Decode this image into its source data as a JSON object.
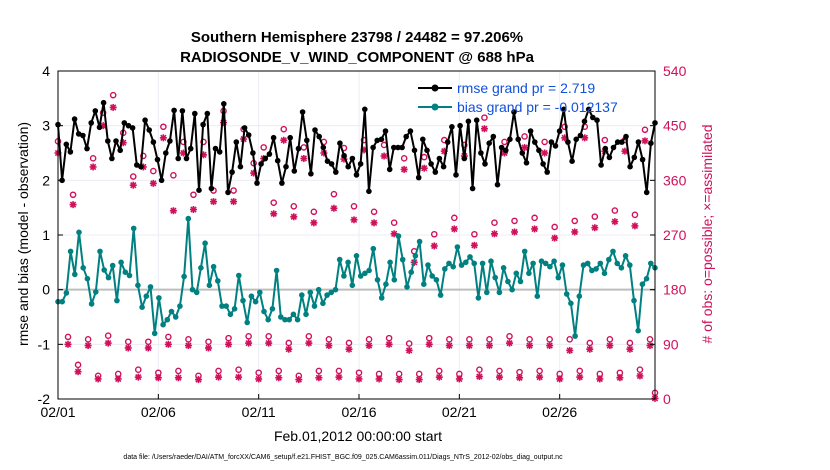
{
  "colors": {
    "rmse": "#000000",
    "bias": "#008080",
    "obs": "#d0105a",
    "zero": "#bdbdbd",
    "legend_text": "#1050e0",
    "grid": "#ececf4"
  },
  "chart_data": {
    "type": "line",
    "title_line1": "Southern Hemisphere 23798 / 24482 = 97.206%",
    "title_line2": "RADIOSONDE_V_WIND_COMPONENT @ 688 hPa",
    "ylabel": "rmse and bias (model - observation)",
    "ylabel_right": "# of obs: o=possible; ×=assimilated",
    "xlabel": "Feb.01,2012 00:00:00 start",
    "footnote": "data file: /Users/raeder/DAI/ATM_forcXX/CAM6_setup/f.e21.FHIST_BGC.f09_025.CAM6assim.011/Diags_NTrS_2012-02/obs_diag_output.nc",
    "xlim": [
      0,
      29.75
    ],
    "ylim": [
      -2,
      4
    ],
    "ylim_right": [
      0,
      540
    ],
    "yticks": [
      "-2",
      "-1",
      "0",
      "1",
      "2",
      "3",
      "4"
    ],
    "yticks_right": [
      "0",
      "90",
      "180",
      "270",
      "360",
      "450",
      "540"
    ],
    "xtick_labels": [
      "02/01",
      "02/06",
      "02/11",
      "02/16",
      "02/21",
      "02/26"
    ],
    "xtick_days": [
      0,
      5,
      10,
      15,
      20,
      25
    ],
    "legend": [
      "rmse grand pr = 2.719",
      "bias grand pr = -0.012137"
    ],
    "series": [
      {
        "name": "rmse",
        "values": [
          3.02,
          2.0,
          2.66,
          2.52,
          3.12,
          2.85,
          2.82,
          2.58,
          3.05,
          3.27,
          2.97,
          3.42,
          2.72,
          2.4,
          2.72,
          2.55,
          3.05,
          3.0,
          2.96,
          2.28,
          2.25,
          3.1,
          2.92,
          2.7,
          2.38,
          2.0,
          2.5,
          2.72,
          3.28,
          2.4,
          3.27,
          2.4,
          2.58,
          3.22,
          1.82,
          3.02,
          3.22,
          1.85,
          2.58,
          2.52,
          3.4,
          1.78,
          2.15,
          2.7,
          2.25,
          2.96,
          2.83,
          2.5,
          1.95,
          2.3,
          2.4,
          2.48,
          2.78,
          2.36,
          1.95,
          2.25,
          2.78,
          2.17,
          2.58,
          3.25,
          2.73,
          2.12,
          2.92,
          2.8,
          2.6,
          2.35,
          2.3,
          2.15,
          2.68,
          2.45,
          2.25,
          2.4,
          2.1,
          2.3,
          3.3,
          1.8,
          2.6,
          2.73,
          2.75,
          2.9,
          2.2,
          2.6,
          2.6,
          2.6,
          2.8,
          2.9,
          2.55,
          2.05,
          2.75,
          2.55,
          2.3,
          2.15,
          2.4,
          2.25,
          2.7,
          2.98,
          2.1,
          3.0,
          2.4,
          3.08,
          1.85,
          3.1,
          2.5,
          2.3,
          2.68,
          2.8,
          1.92,
          2.6,
          2.55,
          2.75,
          3.25,
          2.75,
          2.5,
          2.32,
          2.9,
          2.7,
          2.55,
          2.3,
          2.15,
          2.7,
          2.63,
          2.9,
          3.3,
          2.7,
          2.35,
          2.75,
          2.82,
          3.08,
          3.3,
          3.15,
          3.1,
          2.28,
          2.58,
          2.42,
          2.6,
          2.7,
          2.7,
          2.8,
          2.25,
          2.42,
          2.7,
          2.38,
          1.78,
          2.68,
          3.05
        ]
      },
      {
        "name": "bias",
        "values": [
          -0.22,
          -0.22,
          -0.06,
          0.7,
          0.28,
          1.05,
          0.4,
          0.2,
          -0.26,
          -0.04,
          0.7,
          0.36,
          0.22,
          0.44,
          -0.2,
          0.5,
          0.32,
          0.26,
          1.12,
          0.08,
          -0.32,
          -0.12,
          0.05,
          -0.8,
          -0.15,
          -0.64,
          -0.55,
          -0.4,
          -0.5,
          -0.3,
          0.24,
          1.3,
          0.0,
          -0.05,
          0.4,
          0.85,
          0.08,
          0.42,
          0.16,
          -0.3,
          -0.3,
          -0.45,
          -0.35,
          0.26,
          -0.2,
          -0.6,
          -0.12,
          -0.22,
          -0.05,
          -0.4,
          -0.55,
          -0.35,
          0.35,
          -0.5,
          -0.55,
          -0.55,
          -0.45,
          -0.55,
          -0.1,
          -0.45,
          -0.05,
          -0.3,
          0.0,
          -0.25,
          -0.1,
          -0.05,
          0.0,
          0.55,
          0.25,
          0.5,
          0.08,
          0.62,
          0.25,
          0.3,
          0.35,
          0.75,
          0.18,
          -0.15,
          0.1,
          0.5,
          0.18,
          0.98,
          0.55,
          0.05,
          0.32,
          0.62,
          0.88,
          0.1,
          0.45,
          0.25,
          0.18,
          -0.1,
          0.38,
          0.48,
          0.42,
          0.78,
          0.45,
          0.5,
          0.6,
          0.48,
          -0.15,
          0.48,
          -0.05,
          0.52,
          0.22,
          -0.05,
          0.4,
          0.15,
          0.0,
          0.3,
          0.15,
          0.7,
          0.3,
          0.48,
          -0.12,
          0.52,
          0.48,
          0.42,
          0.52,
          0.22,
          0.45,
          -0.08,
          -0.25,
          -0.85,
          -0.12,
          0.45,
          0.48,
          0.35,
          0.38,
          0.48,
          0.3,
          0.55,
          0.7,
          0.48,
          0.4,
          0.62,
          0.45,
          -0.2,
          -0.75,
          0.1,
          0.2,
          0.48,
          0.4
        ]
      }
    ],
    "obs_possible": [
      {
        "day": 0.0,
        "v": 416
      },
      {
        "day": 0.5,
        "v": 94
      },
      {
        "day": 0.75,
        "v": 328
      },
      {
        "day": 1.0,
        "v": 48
      },
      {
        "day": 1.5,
        "v": 90
      },
      {
        "day": 1.75,
        "v": 388
      },
      {
        "day": 2.0,
        "v": 30
      },
      {
        "day": 2.25,
        "v": 463
      },
      {
        "day": 2.5,
        "v": 96
      },
      {
        "day": 2.75,
        "v": 492
      },
      {
        "day": 3.0,
        "v": 33
      },
      {
        "day": 3.25,
        "v": 430
      },
      {
        "day": 3.5,
        "v": 86
      },
      {
        "day": 3.75,
        "v": 358
      },
      {
        "day": 4.0,
        "v": 40
      },
      {
        "day": 4.25,
        "v": 392
      },
      {
        "day": 4.5,
        "v": 86
      },
      {
        "day": 4.75,
        "v": 367
      },
      {
        "day": 5.0,
        "v": 35
      },
      {
        "day": 5.25,
        "v": 440
      },
      {
        "day": 5.5,
        "v": 94
      },
      {
        "day": 5.75,
        "v": 360
      },
      {
        "day": 6.0,
        "v": 38
      },
      {
        "day": 6.25,
        "v": 415
      },
      {
        "day": 6.5,
        "v": 90
      },
      {
        "day": 6.75,
        "v": 328
      },
      {
        "day": 7.0,
        "v": 30
      },
      {
        "day": 7.25,
        "v": 415
      },
      {
        "day": 7.5,
        "v": 86
      },
      {
        "day": 7.75,
        "v": 335
      },
      {
        "day": 8.0,
        "v": 38
      },
      {
        "day": 8.25,
        "v": 466
      },
      {
        "day": 8.5,
        "v": 92
      },
      {
        "day": 8.75,
        "v": 335
      },
      {
        "day": 9.0,
        "v": 40
      },
      {
        "day": 9.25,
        "v": 436
      },
      {
        "day": 9.5,
        "v": 95
      },
      {
        "day": 9.75,
        "v": 380
      },
      {
        "day": 10.0,
        "v": 35
      },
      {
        "day": 10.25,
        "v": 406
      },
      {
        "day": 10.5,
        "v": 95
      },
      {
        "day": 10.75,
        "v": 315
      },
      {
        "day": 11.0,
        "v": 38
      },
      {
        "day": 11.25,
        "v": 436
      },
      {
        "day": 11.5,
        "v": 84
      },
      {
        "day": 11.75,
        "v": 309
      },
      {
        "day": 12.0,
        "v": 30
      },
      {
        "day": 12.25,
        "v": 406
      },
      {
        "day": 12.5,
        "v": 95
      },
      {
        "day": 12.75,
        "v": 300
      },
      {
        "day": 13.0,
        "v": 38
      },
      {
        "day": 13.25,
        "v": 415
      },
      {
        "day": 13.5,
        "v": 90
      },
      {
        "day": 13.75,
        "v": 329
      },
      {
        "day": 14.0,
        "v": 38
      },
      {
        "day": 14.25,
        "v": 405
      },
      {
        "day": 14.5,
        "v": 84
      },
      {
        "day": 14.75,
        "v": 309
      },
      {
        "day": 15.0,
        "v": 35
      },
      {
        "day": 15.25,
        "v": 418
      },
      {
        "day": 15.5,
        "v": 90
      },
      {
        "day": 15.75,
        "v": 300
      },
      {
        "day": 16.0,
        "v": 33
      },
      {
        "day": 16.25,
        "v": 410
      },
      {
        "day": 16.5,
        "v": 92
      },
      {
        "day": 16.75,
        "v": 282
      },
      {
        "day": 17.0,
        "v": 33
      },
      {
        "day": 17.25,
        "v": 388
      },
      {
        "day": 17.5,
        "v": 83
      },
      {
        "day": 17.75,
        "v": 235
      },
      {
        "day": 18.0,
        "v": 33
      },
      {
        "day": 18.25,
        "v": 390
      },
      {
        "day": 18.5,
        "v": 92
      },
      {
        "day": 18.75,
        "v": 263
      },
      {
        "day": 19.0,
        "v": 38
      },
      {
        "day": 19.25,
        "v": 418
      },
      {
        "day": 19.5,
        "v": 90
      },
      {
        "day": 19.75,
        "v": 290
      },
      {
        "day": 20.0,
        "v": 33
      },
      {
        "day": 20.25,
        "v": 410
      },
      {
        "day": 20.5,
        "v": 90
      },
      {
        "day": 20.75,
        "v": 263
      },
      {
        "day": 21.0,
        "v": 40
      },
      {
        "day": 21.25,
        "v": 455
      },
      {
        "day": 21.5,
        "v": 90
      },
      {
        "day": 21.75,
        "v": 282
      },
      {
        "day": 22.0,
        "v": 38
      },
      {
        "day": 22.25,
        "v": 415
      },
      {
        "day": 22.5,
        "v": 95
      },
      {
        "day": 22.75,
        "v": 285
      },
      {
        "day": 23.0,
        "v": 36
      },
      {
        "day": 23.25,
        "v": 424
      },
      {
        "day": 23.5,
        "v": 90
      },
      {
        "day": 23.75,
        "v": 290
      },
      {
        "day": 24.0,
        "v": 38
      },
      {
        "day": 24.25,
        "v": 415
      },
      {
        "day": 24.5,
        "v": 90
      },
      {
        "day": 24.75,
        "v": 275
      },
      {
        "day": 25.0,
        "v": 33
      },
      {
        "day": 25.25,
        "v": 440
      },
      {
        "day": 25.5,
        "v": 90
      },
      {
        "day": 25.75,
        "v": 285
      },
      {
        "day": 26.0,
        "v": 38
      },
      {
        "day": 26.25,
        "v": 440
      },
      {
        "day": 26.5,
        "v": 84
      },
      {
        "day": 26.75,
        "v": 292
      },
      {
        "day": 27.0,
        "v": 33
      },
      {
        "day": 27.25,
        "v": 418
      },
      {
        "day": 27.5,
        "v": 90
      },
      {
        "day": 27.75,
        "v": 302
      },
      {
        "day": 28.0,
        "v": 35
      },
      {
        "day": 28.25,
        "v": 418
      },
      {
        "day": 28.5,
        "v": 84
      },
      {
        "day": 28.75,
        "v": 295
      },
      {
        "day": 29.0,
        "v": 40
      },
      {
        "day": 29.25,
        "v": 435
      },
      {
        "day": 29.5,
        "v": 90
      },
      {
        "day": 29.75,
        "v": 2
      }
    ],
    "obs_assimilated": [
      {
        "day": 0.0,
        "v": 405
      },
      {
        "day": 0.5,
        "v": 90
      },
      {
        "day": 0.75,
        "v": 320
      },
      {
        "day": 1.0,
        "v": 45
      },
      {
        "day": 1.5,
        "v": 88
      },
      {
        "day": 1.75,
        "v": 382
      },
      {
        "day": 2.0,
        "v": 33
      },
      {
        "day": 2.25,
        "v": 450
      },
      {
        "day": 2.5,
        "v": 92
      },
      {
        "day": 2.75,
        "v": 480
      },
      {
        "day": 3.0,
        "v": 33
      },
      {
        "day": 3.25,
        "v": 422
      },
      {
        "day": 3.5,
        "v": 84
      },
      {
        "day": 3.75,
        "v": 352
      },
      {
        "day": 4.0,
        "v": 36
      },
      {
        "day": 4.25,
        "v": 382
      },
      {
        "day": 4.5,
        "v": 84
      },
      {
        "day": 4.75,
        "v": 355
      },
      {
        "day": 5.0,
        "v": 35
      },
      {
        "day": 5.25,
        "v": 430
      },
      {
        "day": 5.5,
        "v": 90
      },
      {
        "day": 5.75,
        "v": 310
      },
      {
        "day": 6.0,
        "v": 35
      },
      {
        "day": 6.25,
        "v": 405
      },
      {
        "day": 6.5,
        "v": 88
      },
      {
        "day": 6.75,
        "v": 312
      },
      {
        "day": 7.0,
        "v": 32
      },
      {
        "day": 7.25,
        "v": 402
      },
      {
        "day": 7.5,
        "v": 84
      },
      {
        "day": 7.75,
        "v": 325
      },
      {
        "day": 8.0,
        "v": 36
      },
      {
        "day": 8.25,
        "v": 455
      },
      {
        "day": 8.5,
        "v": 90
      },
      {
        "day": 8.75,
        "v": 325
      },
      {
        "day": 9.0,
        "v": 36
      },
      {
        "day": 9.25,
        "v": 428
      },
      {
        "day": 9.5,
        "v": 92
      },
      {
        "day": 9.75,
        "v": 372
      },
      {
        "day": 10.0,
        "v": 33
      },
      {
        "day": 10.25,
        "v": 396
      },
      {
        "day": 10.5,
        "v": 92
      },
      {
        "day": 10.75,
        "v": 305
      },
      {
        "day": 11.0,
        "v": 35
      },
      {
        "day": 11.25,
        "v": 426
      },
      {
        "day": 11.5,
        "v": 82
      },
      {
        "day": 11.75,
        "v": 300
      },
      {
        "day": 12.0,
        "v": 32
      },
      {
        "day": 12.25,
        "v": 396
      },
      {
        "day": 12.5,
        "v": 92
      },
      {
        "day": 12.75,
        "v": 290
      },
      {
        "day": 13.0,
        "v": 35
      },
      {
        "day": 13.25,
        "v": 405
      },
      {
        "day": 13.5,
        "v": 88
      },
      {
        "day": 13.75,
        "v": 314
      },
      {
        "day": 14.0,
        "v": 36
      },
      {
        "day": 14.25,
        "v": 395
      },
      {
        "day": 14.5,
        "v": 82
      },
      {
        "day": 14.75,
        "v": 295
      },
      {
        "day": 15.0,
        "v": 33
      },
      {
        "day": 15.25,
        "v": 410
      },
      {
        "day": 15.5,
        "v": 88
      },
      {
        "day": 15.75,
        "v": 290
      },
      {
        "day": 16.0,
        "v": 33
      },
      {
        "day": 16.25,
        "v": 400
      },
      {
        "day": 16.5,
        "v": 90
      },
      {
        "day": 16.75,
        "v": 272
      },
      {
        "day": 17.0,
        "v": 32
      },
      {
        "day": 17.25,
        "v": 378
      },
      {
        "day": 17.5,
        "v": 80
      },
      {
        "day": 17.75,
        "v": 225
      },
      {
        "day": 18.0,
        "v": 32
      },
      {
        "day": 18.25,
        "v": 380
      },
      {
        "day": 18.5,
        "v": 90
      },
      {
        "day": 18.75,
        "v": 252
      },
      {
        "day": 19.0,
        "v": 36
      },
      {
        "day": 19.25,
        "v": 408
      },
      {
        "day": 19.5,
        "v": 88
      },
      {
        "day": 19.75,
        "v": 280
      },
      {
        "day": 20.0,
        "v": 33
      },
      {
        "day": 20.25,
        "v": 400
      },
      {
        "day": 20.5,
        "v": 88
      },
      {
        "day": 20.75,
        "v": 253
      },
      {
        "day": 21.0,
        "v": 37
      },
      {
        "day": 21.25,
        "v": 445
      },
      {
        "day": 21.5,
        "v": 88
      },
      {
        "day": 21.75,
        "v": 272
      },
      {
        "day": 22.0,
        "v": 36
      },
      {
        "day": 22.25,
        "v": 405
      },
      {
        "day": 22.5,
        "v": 92
      },
      {
        "day": 22.75,
        "v": 275
      },
      {
        "day": 23.0,
        "v": 35
      },
      {
        "day": 23.25,
        "v": 414
      },
      {
        "day": 23.5,
        "v": 88
      },
      {
        "day": 23.75,
        "v": 280
      },
      {
        "day": 24.0,
        "v": 36
      },
      {
        "day": 24.25,
        "v": 405
      },
      {
        "day": 24.5,
        "v": 88
      },
      {
        "day": 24.75,
        "v": 265
      },
      {
        "day": 25.0,
        "v": 33
      },
      {
        "day": 25.25,
        "v": 430
      },
      {
        "day": 25.5,
        "v": 80
      },
      {
        "day": 25.75,
        "v": 275
      },
      {
        "day": 26.0,
        "v": 36
      },
      {
        "day": 26.25,
        "v": 430
      },
      {
        "day": 26.5,
        "v": 82
      },
      {
        "day": 26.75,
        "v": 282
      },
      {
        "day": 27.0,
        "v": 33
      },
      {
        "day": 27.25,
        "v": 408
      },
      {
        "day": 27.5,
        "v": 88
      },
      {
        "day": 27.75,
        "v": 292
      },
      {
        "day": 28.0,
        "v": 35
      },
      {
        "day": 28.25,
        "v": 408
      },
      {
        "day": 28.5,
        "v": 82
      },
      {
        "day": 28.75,
        "v": 285
      },
      {
        "day": 29.0,
        "v": 38
      },
      {
        "day": 29.25,
        "v": 425
      },
      {
        "day": 29.5,
        "v": 88
      },
      {
        "day": 29.75,
        "v": 1
      }
    ]
  }
}
